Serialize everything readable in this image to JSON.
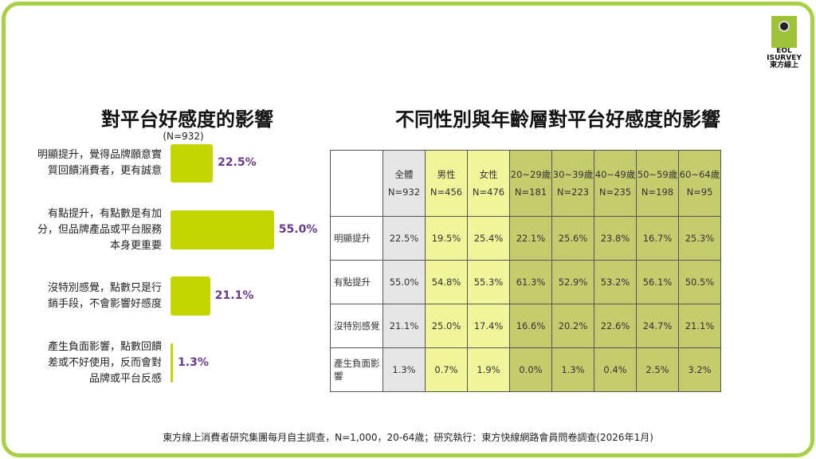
{
  "logo": {
    "text1": "EOL",
    "text2": "ISURVEY",
    "text3": "東方線上"
  },
  "colors": {
    "bar": "#c3d600",
    "value_label": "#6a3a8e",
    "border": "#a9cf45",
    "total_col": "#e6e6e6",
    "gender_col": "#f0f59a",
    "age_col": "#c5cc6e"
  },
  "chart_data": {
    "type": "bar",
    "orientation": "horizontal",
    "title": "對平台好感度的影響",
    "subtitle": "(N=932)",
    "categories": [
      "明顯提升，覺得品牌願意實質回饋消費者，更有誠意",
      "有點提升，有點數是有加分，但品牌產品或平台服務本身更重要",
      "沒特別感覺，點數只是行銷手段，不會影響好感度",
      "產生負面影響，點數回饋差或不好使用，反而會對品牌或平台反感"
    ],
    "values": [
      22.5,
      55.0,
      21.1,
      1.3
    ],
    "labels": [
      "22.5%",
      "55.0%",
      "21.1%",
      "1.3%"
    ]
  },
  "table": {
    "title": "不同性別與年齡層對平台好感度的影響",
    "columns": [
      {
        "name": "全體",
        "n": "N=932"
      },
      {
        "name": "男性",
        "n": "N=456"
      },
      {
        "name": "女性",
        "n": "N=476"
      },
      {
        "name": "20~29歲",
        "n": "N=181"
      },
      {
        "name": "30~39歲",
        "n": "N=223"
      },
      {
        "name": "40~49歲",
        "n": "N=235"
      },
      {
        "name": "50~59歲",
        "n": "N=198"
      },
      {
        "name": "60~64歲",
        "n": "N=95"
      }
    ],
    "rows": [
      {
        "label": "明顯提升",
        "cells": [
          "22.5%",
          "19.5%",
          "25.4%",
          "22.1%",
          "25.6%",
          "23.8%",
          "16.7%",
          "25.3%"
        ]
      },
      {
        "label": "有點提升",
        "cells": [
          "55.0%",
          "54.8%",
          "55.3%",
          "61.3%",
          "52.9%",
          "53.2%",
          "56.1%",
          "50.5%"
        ]
      },
      {
        "label": "沒特別感覺",
        "cells": [
          "21.1%",
          "25.0%",
          "17.4%",
          "16.6%",
          "20.2%",
          "22.6%",
          "24.7%",
          "21.1%"
        ]
      },
      {
        "label": "產生負面影響",
        "cells": [
          "1.3%",
          "0.7%",
          "1.9%",
          "0.0%",
          "1.3%",
          "0.4%",
          "2.5%",
          "3.2%"
        ]
      }
    ]
  },
  "footer": "東方線上消費者研究集團每月自主調查，N=1,000，20-64歲；研究執行：東方快線網路會員問卷調查(2026年1月)"
}
